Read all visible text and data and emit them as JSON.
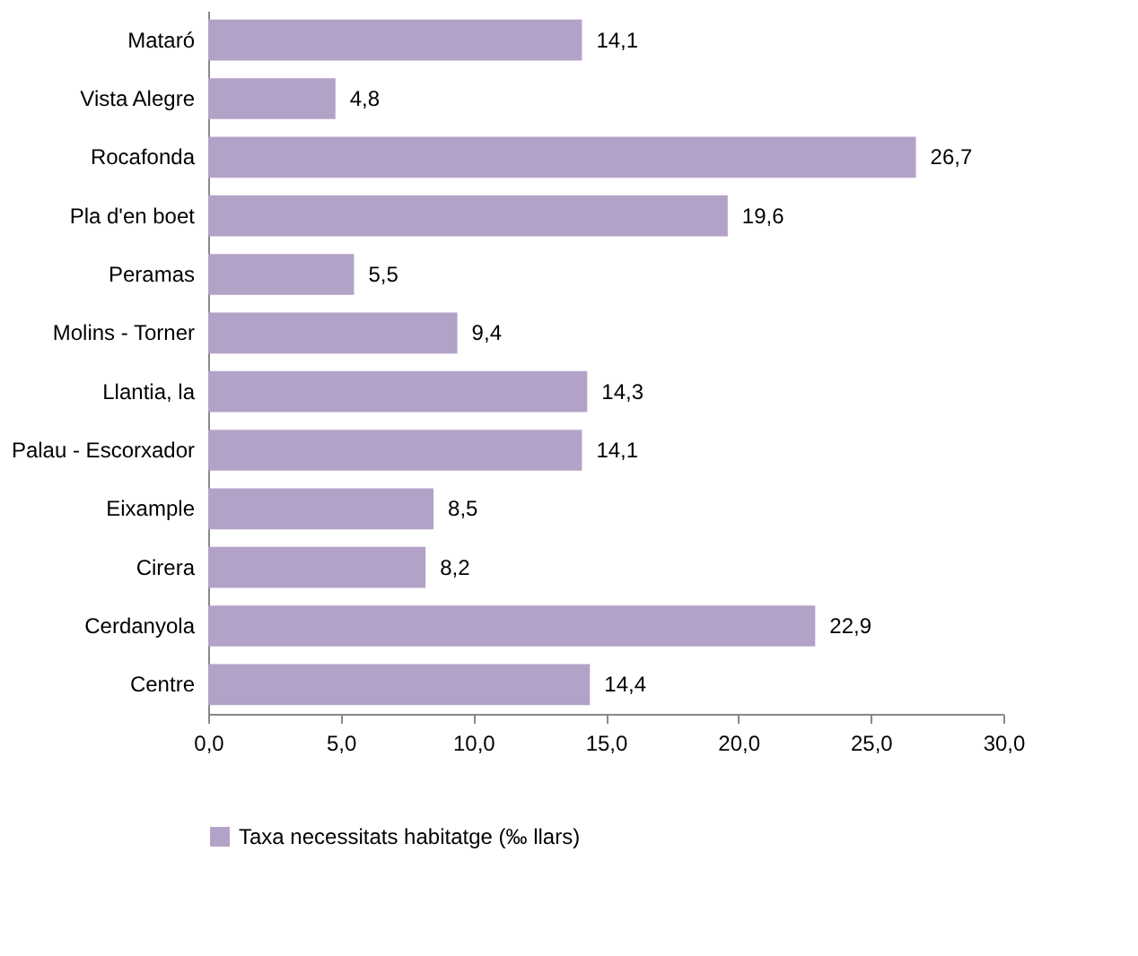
{
  "chart_data": {
    "type": "bar",
    "orientation": "horizontal",
    "categories": [
      "Mataró",
      "Vista Alegre",
      "Rocafonda",
      "Pla d'en boet",
      "Peramas",
      "Molins - Torner",
      "Llantia, la",
      "Palau - Escorxador",
      "Eixample",
      "Cirera",
      "Cerdanyola",
      "Centre"
    ],
    "series": [
      {
        "name": "Taxa necessitats habitatge (‰ llars)",
        "color": "#b3a2c7",
        "values": [
          14.1,
          4.8,
          26.7,
          19.6,
          5.5,
          9.4,
          14.3,
          14.1,
          8.5,
          8.2,
          22.9,
          14.4
        ],
        "value_labels": [
          "14,1",
          "4,8",
          "26,7",
          "19,6",
          "5,5",
          "9,4",
          "14,3",
          "14,1",
          "8,5",
          "8,2",
          "22,9",
          "14,4"
        ]
      }
    ],
    "xlim": [
      0,
      30
    ],
    "xticks": [
      {
        "value": 0,
        "label": "0,0"
      },
      {
        "value": 5,
        "label": "5,0"
      },
      {
        "value": 10,
        "label": "10,0"
      },
      {
        "value": 15,
        "label": "15,0"
      },
      {
        "value": 20,
        "label": "20,0"
      },
      {
        "value": 25,
        "label": "25,0"
      },
      {
        "value": 30,
        "label": "30,0"
      }
    ],
    "grid": false,
    "legend": "bottom"
  }
}
